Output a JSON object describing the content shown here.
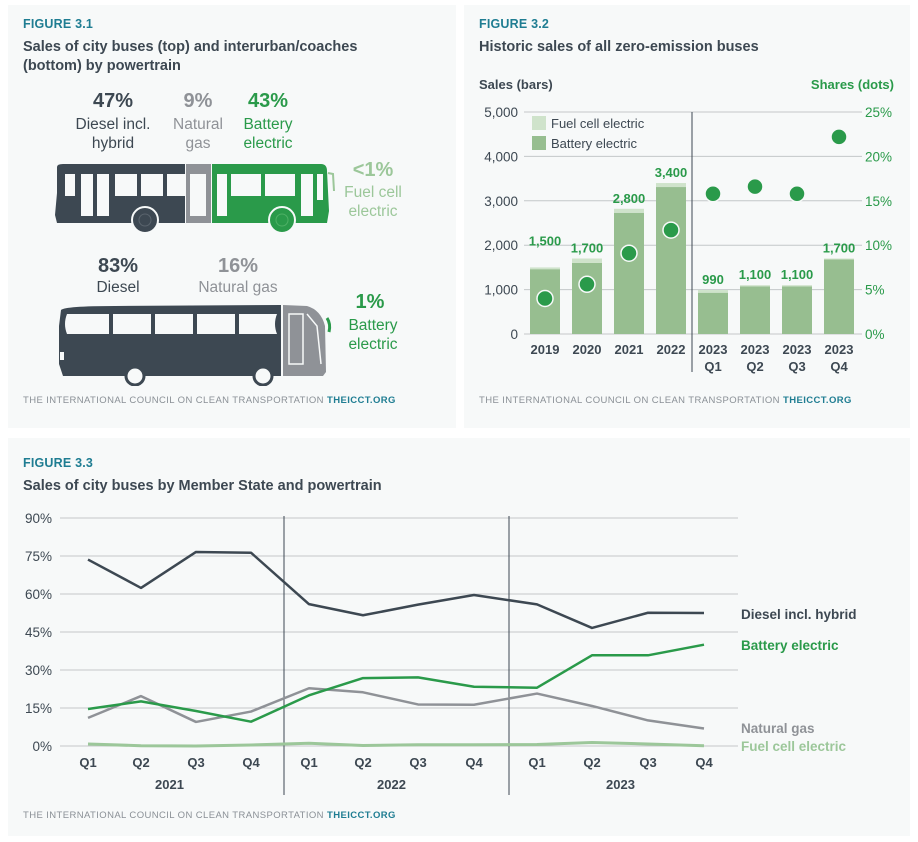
{
  "colors": {
    "diesel": "#3d4852",
    "natural_gas": "#8f9297",
    "battery": "#2a9a4a",
    "fuel_cell": "#9cc79a",
    "bar_battery": "#97be90",
    "bar_fuel_cell": "#cfe3cb",
    "figure_label": "#1f7d92"
  },
  "figure1": {
    "label": "FIGURE 3.1",
    "title_line1": "Sales of city buses (top) and interurban/coaches",
    "title_line2": "(bottom) by powertrain",
    "city": {
      "diesel": {
        "pct": "47%",
        "line1": "Diesel incl.",
        "line2": "hybrid"
      },
      "natural_gas": {
        "pct": "9%",
        "line1": "Natural",
        "line2": "gas"
      },
      "battery": {
        "pct": "43%",
        "line1": "Battery",
        "line2": "electric"
      },
      "fuel_cell": {
        "pct": "<1%",
        "line1": "Fuel cell",
        "line2": "electric"
      }
    },
    "coach": {
      "diesel": {
        "pct": "83%",
        "line1": "Diesel"
      },
      "natural_gas": {
        "pct": "16%",
        "line1": "Natural gas"
      },
      "battery": {
        "pct": "1%",
        "line1": "Battery",
        "line2": "electric"
      }
    },
    "credit": "THE INTERNATIONAL COUNCIL ON CLEAN TRANSPORTATION",
    "credit_link": "THEICCT.ORG"
  },
  "figure2": {
    "label": "FIGURE 3.2",
    "title": "Historic sales of all zero-emission buses",
    "credit": "THE INTERNATIONAL COUNCIL ON CLEAN TRANSPORTATION",
    "credit_link": "THEICCT.ORG"
  },
  "figure3": {
    "label": "FIGURE 3.3",
    "title": "Sales of city buses by Member State and powertrain",
    "credit": "THE INTERNATIONAL COUNCIL ON CLEAN TRANSPORTATION",
    "credit_link": "THEICCT.ORG"
  },
  "chart_data": [
    {
      "type": "bar",
      "title": "Historic sales of all zero-emission buses",
      "ylabel": "Sales (bars)",
      "y2label": "Shares (dots)",
      "categories": [
        [
          "2019"
        ],
        [
          "2020"
        ],
        [
          "2021"
        ],
        [
          "2022"
        ],
        [
          "2023",
          "Q1"
        ],
        [
          "2023",
          "Q2"
        ],
        [
          "2023",
          "Q3"
        ],
        [
          "2023",
          "Q4"
        ]
      ],
      "ylim": [
        0,
        5000
      ],
      "yticks": [
        "0",
        "1,000",
        "2,000",
        "3,000",
        "4,000",
        "5,000"
      ],
      "y2lim": [
        0,
        25
      ],
      "y2ticks": [
        "0%",
        "5%",
        "10%",
        "15%",
        "20%",
        "25%"
      ],
      "stacked": true,
      "series": [
        {
          "name": "Battery electric",
          "values": [
            1460,
            1600,
            2730,
            3310,
            930,
            1070,
            1070,
            1680
          ]
        },
        {
          "name": "Fuel cell electric",
          "values": [
            40,
            100,
            90,
            90,
            60,
            30,
            30,
            20
          ]
        }
      ],
      "totals_labels": [
        "1,500",
        "1,700",
        "2,800",
        "3,400",
        "990",
        "1,100",
        "1,100",
        "1,700"
      ],
      "shares": {
        "name": "Share of zero-emission buses (%)",
        "values": [
          4.0,
          5.6,
          9.1,
          11.7,
          15.8,
          16.6,
          15.8,
          22.2
        ]
      },
      "legend": [
        "Fuel cell electric",
        "Battery electric"
      ],
      "legend_position": "top-left",
      "grid": true
    },
    {
      "type": "line",
      "title": "Sales of city buses by Member State and powertrain",
      "x": [
        "Q1",
        "Q2",
        "Q3",
        "Q4",
        "Q1",
        "Q2",
        "Q3",
        "Q4",
        "Q1",
        "Q2",
        "Q3",
        "Q4"
      ],
      "x_groups": [
        "2021",
        "2022",
        "2023"
      ],
      "ylim": [
        0,
        90
      ],
      "yticks": [
        "0%",
        "15%",
        "30%",
        "45%",
        "60%",
        "75%",
        "90%"
      ],
      "series": [
        {
          "name": "Diesel incl. hybrid",
          "values": [
            73.6,
            62.4,
            76.6,
            76.3,
            56.0,
            51.6,
            55.8,
            59.6,
            55.9,
            46.6,
            52.6,
            52.5
          ]
        },
        {
          "name": "Battery electric",
          "values": [
            14.6,
            17.6,
            13.8,
            9.6,
            20.0,
            26.8,
            27.1,
            23.4,
            23.0,
            35.8,
            35.8,
            40.0
          ]
        },
        {
          "name": "Natural gas",
          "values": [
            11.1,
            19.7,
            9.5,
            13.6,
            22.8,
            21.2,
            16.4,
            16.3,
            20.7,
            15.8,
            10.1,
            6.9
          ]
        },
        {
          "name": "Fuel cell electric",
          "values": [
            0.8,
            0.1,
            0.0,
            0.4,
            1.1,
            0.2,
            0.5,
            0.5,
            0.6,
            1.4,
            0.8,
            0.1
          ]
        }
      ],
      "legend_position": "right (end-of-line labels)",
      "grid": true
    }
  ]
}
